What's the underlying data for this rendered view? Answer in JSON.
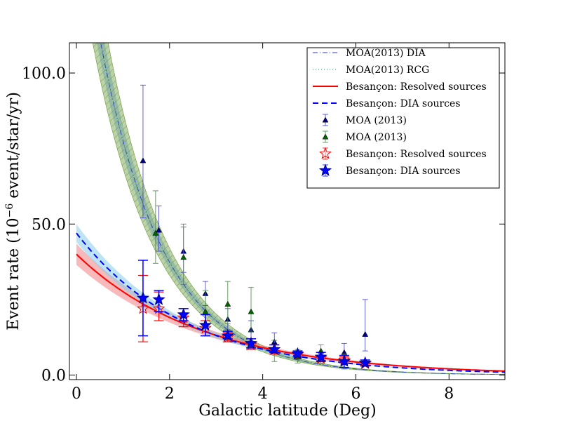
{
  "chart_data": {
    "type": "scatter",
    "title": "",
    "xlabel": "Galactic latitude (Deg)",
    "ylabel": "Event rate (10",
    "ylabel_exp": "−6",
    "ylabel_units": " event/star/yr)",
    "xlim": [
      -0.15,
      9.2
    ],
    "ylim": [
      -1.5,
      110
    ],
    "xticks": [
      0,
      2,
      4,
      6,
      8
    ],
    "xtick_labels": [
      "0",
      "2",
      "4",
      "6",
      "8"
    ],
    "yticks": [
      0,
      50,
      100
    ],
    "ytick_labels": [
      "0.0",
      "50.0",
      "100.0"
    ],
    "grid": false,
    "legend_position": "top-right",
    "legend": [
      "MOA(2013) DIA",
      "MOA(2013) RCG",
      "Besançon: Resolved sources",
      "Besançon: DIA sources",
      "MOA (2013)",
      "MOA (2013)",
      "Besançon: Resolved sources",
      "Besançon: DIA sources"
    ],
    "curves": {
      "moa_dia_fit": {
        "name": "MOA(2013) DIA",
        "color": "#3a3acb",
        "style": "dashdot",
        "amplitude": 161,
        "scale": 1.37
      },
      "moa_rcg_fit": {
        "name": "MOA(2013) RCG",
        "color": "#2e8b57",
        "style": "dotted",
        "amplitude": 161,
        "scale": 1.37
      },
      "moa_band": {
        "color": "#6b9e3c",
        "lower_amplitude": 142,
        "upper_amplitude": 181,
        "scale": 1.37
      },
      "bes_resolved": {
        "name": "Besançon: Resolved sources",
        "color": "#ff0000",
        "amplitude": 40,
        "scale": 2.7
      },
      "bes_resolved_band": {
        "color": "#f08080",
        "lower_amplitude": 36.5,
        "upper_amplitude": 43.5,
        "scale": 2.7
      },
      "bes_dia": {
        "name": "Besançon: DIA sources",
        "color": "#0000ff",
        "amplitude": 47,
        "scale": 2.35
      },
      "bes_dia_band": {
        "color": "#87ceeb",
        "lower_amplitude": 44,
        "upper_amplitude": 50,
        "scale": 2.35
      }
    },
    "series": [
      {
        "name": "MOA (2013)",
        "marker": "triangle",
        "color": "#00008b",
        "points": [
          {
            "x": 1.43,
            "y": 71,
            "lo": 52,
            "hi": 96
          },
          {
            "x": 1.77,
            "y": 48,
            "lo": 41,
            "hi": 56
          },
          {
            "x": 2.3,
            "y": 41,
            "lo": 34,
            "hi": 49
          },
          {
            "x": 2.77,
            "y": 27,
            "lo": 23,
            "hi": 31
          },
          {
            "x": 3.25,
            "y": 18.5,
            "lo": 15,
            "hi": 22
          },
          {
            "x": 3.75,
            "y": 15,
            "lo": 12,
            "hi": 18
          },
          {
            "x": 4.25,
            "y": 11,
            "lo": 9,
            "hi": 14
          },
          {
            "x": 4.75,
            "y": 7,
            "lo": 6,
            "hi": 8.5
          },
          {
            "x": 5.25,
            "y": 5.5,
            "lo": 4,
            "hi": 7
          },
          {
            "x": 5.75,
            "y": 7.5,
            "lo": 4.5,
            "hi": 10.5
          },
          {
            "x": 6.2,
            "y": 13.5,
            "lo": 8,
            "hi": 25
          }
        ]
      },
      {
        "name": "MOA (2013)",
        "marker": "triangle",
        "color": "#006400",
        "points": [
          {
            "x": 1.7,
            "y": 47,
            "lo": 37,
            "hi": 61
          },
          {
            "x": 2.3,
            "y": 39,
            "lo": 30,
            "hi": 50
          },
          {
            "x": 2.77,
            "y": 21,
            "lo": 15,
            "hi": 28
          },
          {
            "x": 3.25,
            "y": 23.5,
            "lo": 17,
            "hi": 31
          },
          {
            "x": 3.75,
            "y": 21,
            "lo": 14.5,
            "hi": 29
          },
          {
            "x": 4.25,
            "y": 8,
            "lo": 4.5,
            "hi": 11.5
          },
          {
            "x": 4.75,
            "y": 6,
            "lo": 4,
            "hi": 8.5
          },
          {
            "x": 5.25,
            "y": 8,
            "lo": 5,
            "hi": 10
          },
          {
            "x": 5.75,
            "y": 4.5,
            "lo": 2,
            "hi": 7
          }
        ]
      },
      {
        "name": "Besançon: Resolved sources",
        "marker": "star-open",
        "color": "#ff0000",
        "points": [
          {
            "x": 1.43,
            "y": 22,
            "lo": 11,
            "hi": 33
          },
          {
            "x": 1.77,
            "y": 22,
            "lo": 18,
            "hi": 27.5
          },
          {
            "x": 2.3,
            "y": 19,
            "lo": 16,
            "hi": 22
          },
          {
            "x": 2.77,
            "y": 15.5,
            "lo": 13,
            "hi": 18
          },
          {
            "x": 3.25,
            "y": 12.5,
            "lo": 11,
            "hi": 14
          },
          {
            "x": 3.75,
            "y": 10,
            "lo": 8.5,
            "hi": 12
          },
          {
            "x": 4.25,
            "y": 8.5,
            "lo": 7,
            "hi": 10
          },
          {
            "x": 4.75,
            "y": 6.8,
            "lo": 6,
            "hi": 7.7
          },
          {
            "x": 5.25,
            "y": 5.5,
            "lo": 4.8,
            "hi": 6.3
          },
          {
            "x": 5.75,
            "y": 5,
            "lo": 4,
            "hi": 6
          },
          {
            "x": 6.2,
            "y": 3.8,
            "lo": 3.2,
            "hi": 4.5
          }
        ]
      },
      {
        "name": "Besançon: DIA sources",
        "marker": "star-filled",
        "color": "#0000ff",
        "points": [
          {
            "x": 1.43,
            "y": 25.5,
            "lo": 13,
            "hi": 38
          },
          {
            "x": 1.77,
            "y": 25,
            "lo": 21,
            "hi": 28
          },
          {
            "x": 2.3,
            "y": 20,
            "lo": 18,
            "hi": 22
          },
          {
            "x": 2.77,
            "y": 16.5,
            "lo": 13,
            "hi": 20
          },
          {
            "x": 3.25,
            "y": 13,
            "lo": 12,
            "hi": 14.5
          },
          {
            "x": 3.75,
            "y": 10.5,
            "lo": 9,
            "hi": 12
          },
          {
            "x": 4.25,
            "y": 8.5,
            "lo": 7.5,
            "hi": 10
          },
          {
            "x": 4.75,
            "y": 7,
            "lo": 6,
            "hi": 8
          },
          {
            "x": 5.25,
            "y": 6,
            "lo": 4.5,
            "hi": 7.5
          },
          {
            "x": 5.75,
            "y": 4.5,
            "lo": 2.5,
            "hi": 6.5
          },
          {
            "x": 6.2,
            "y": 4,
            "lo": 3,
            "hi": 5
          }
        ]
      }
    ]
  }
}
